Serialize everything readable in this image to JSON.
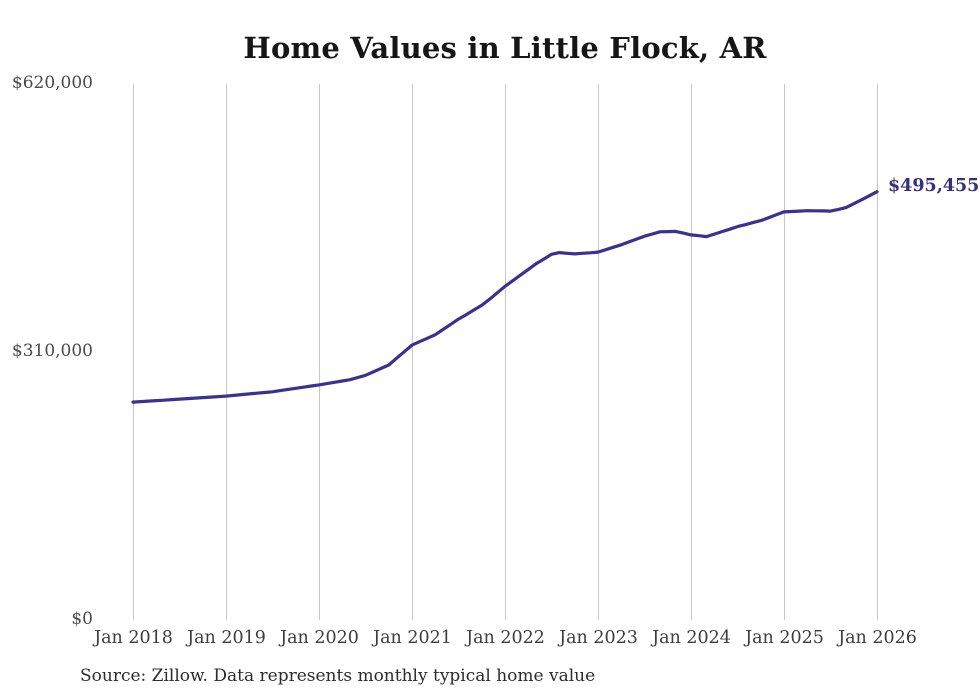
{
  "title": "Home Values in Little Flock, AR",
  "source_note": "Source: Zillow. Data represents monthly typical home value",
  "chart_data": {
    "type": "line",
    "title": "Home Values in Little Flock, AR",
    "series_name": "Monthly typical home value",
    "frequency": "monthly",
    "x_start": "Jan 2018",
    "x_end": "Jan 2026",
    "x_tick_labels": [
      "Jan 2018",
      "Jan 2019",
      "Jan 2020",
      "Jan 2021",
      "Jan 2022",
      "Jan 2023",
      "Jan 2024",
      "Jan 2025",
      "Jan 2026"
    ],
    "y_ticks": [
      {
        "value": 0,
        "label": "$0"
      },
      {
        "value": 310000,
        "label": "$310,000"
      },
      {
        "value": 620000,
        "label": "$620,000"
      }
    ],
    "ylim": [
      0,
      620000
    ],
    "grid": "vertical-only",
    "legend": "none",
    "line_color": "#3b3191",
    "end_label_color": "#34307e",
    "gridline_color": "#c9c9c9",
    "end_label": "$495,455",
    "end_value": 495455,
    "values": [
      252000,
      252600,
      253200,
      253800,
      254300,
      254900,
      255500,
      256100,
      256700,
      257300,
      257800,
      258400,
      259000,
      259800,
      260700,
      261500,
      262300,
      263200,
      264000,
      265300,
      266700,
      268000,
      269300,
      270700,
      272000,
      273500,
      275000,
      276500,
      278000,
      280500,
      283000,
      287000,
      291000,
      295000,
      302700,
      310300,
      318000,
      322000,
      326000,
      330000,
      336000,
      342000,
      348000,
      353300,
      358700,
      364000,
      371000,
      378500,
      386000,
      392500,
      399000,
      405500,
      412000,
      417500,
      423000,
      425000,
      424200,
      423500,
      424200,
      424800,
      425500,
      428300,
      431200,
      434000,
      437300,
      440700,
      444000,
      446500,
      449000,
      449300,
      449500,
      447500,
      445500,
      444500,
      443500,
      446400,
      449300,
      452100,
      455000,
      457300,
      459700,
      462000,
      465300,
      468700,
      472000,
      472500,
      473000,
      473500,
      473300,
      473200,
      473000,
      475000,
      477000,
      481500,
      486000,
      490700,
      495455
    ]
  }
}
